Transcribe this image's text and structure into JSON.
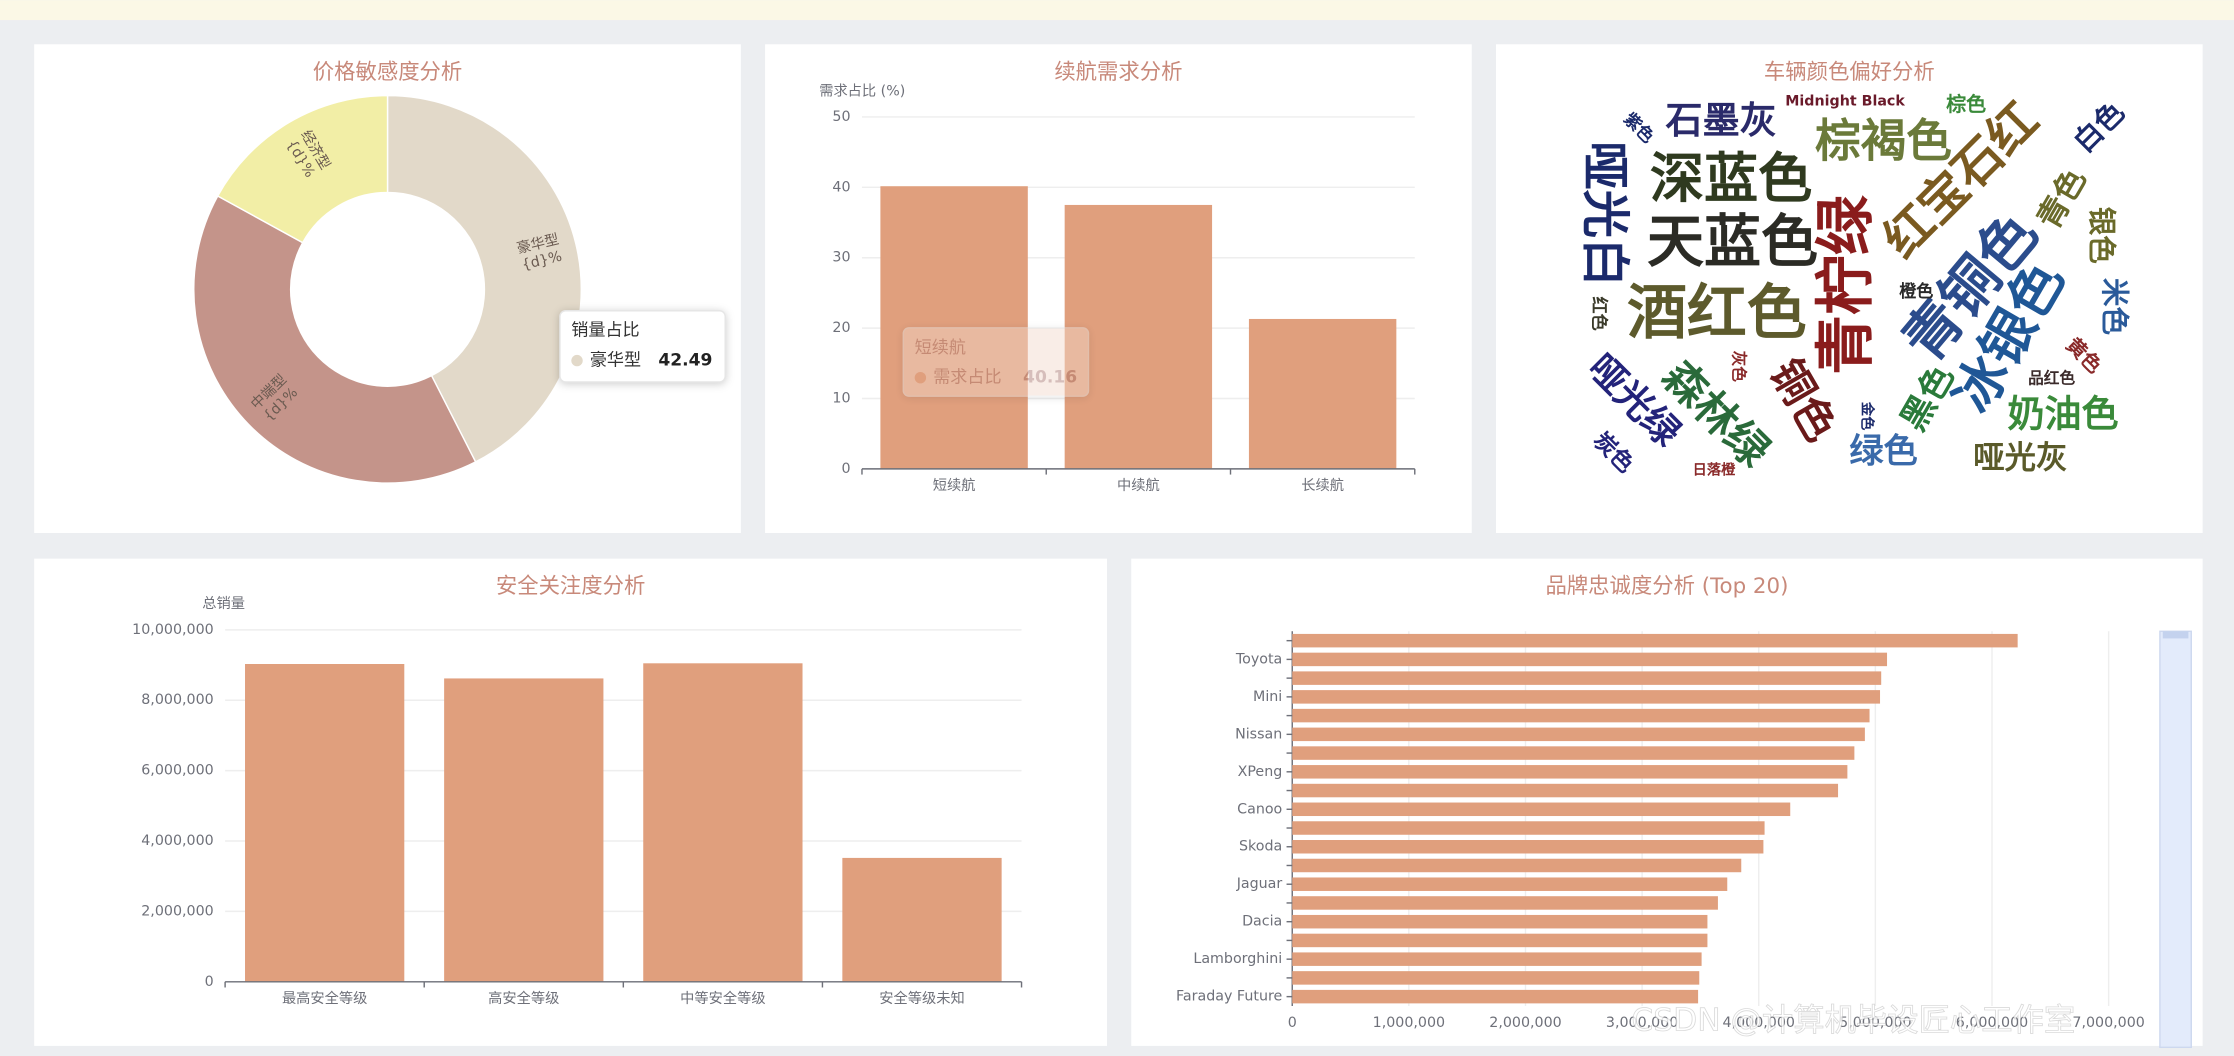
{
  "chart_data": [
    {
      "type": "pie",
      "title": "价格敏感度分析",
      "categories": [
        "豪华型",
        "中端型",
        "经济型"
      ],
      "values": [
        42.49,
        40.51,
        17.0
      ],
      "colors": [
        "#e2d9c9",
        "#c4948a",
        "#f2eea6"
      ],
      "label_template": "{d}%",
      "tooltip": {
        "series_name": "销量占比",
        "category": 0
      }
    },
    {
      "type": "bar",
      "title": "续航需求分析",
      "y_axis_name": "需求占比 (%)",
      "categories": [
        "短续航",
        "中续航",
        "长续航"
      ],
      "values": [
        40.16,
        37.5,
        21.3
      ],
      "color": "#e09f7d",
      "ylim": [
        0,
        50
      ],
      "yticks": [
        0,
        10,
        20,
        30,
        40,
        50
      ],
      "grid": true,
      "tooltip": {
        "series_name": "需求占比",
        "category": 0
      }
    },
    {
      "type": "wordcloud",
      "title": "车辆颜色偏好分析",
      "words": [
        {
          "text": "酒红色",
          "value": 42,
          "color": "#5d5a2c"
        },
        {
          "text": "青柠绿",
          "value": 42,
          "color": "#8a1c1c"
        },
        {
          "text": "天蓝色",
          "value": 40,
          "color": "#2b2b25"
        },
        {
          "text": "深蓝色",
          "value": 38,
          "color": "#2f3a1f"
        },
        {
          "text": "青铜色",
          "value": 40,
          "color": "#2b4c8c"
        },
        {
          "text": "冰银色",
          "value": 38,
          "color": "#1f5796"
        },
        {
          "text": "红宝石红",
          "value": 34,
          "color": "#7a5a20"
        },
        {
          "text": "哑光白",
          "value": 34,
          "color": "#1b2a6b"
        },
        {
          "text": "棕褐色",
          "value": 32,
          "color": "#6b7a3a"
        },
        {
          "text": "石墨灰",
          "value": 26,
          "color": "#2a2a6a"
        },
        {
          "text": "森林绿",
          "value": 30,
          "color": "#2a6a3a"
        },
        {
          "text": "铜色",
          "value": 30,
          "color": "#6a1a1a"
        },
        {
          "text": "哑光绿",
          "value": 26,
          "color": "#23237a"
        },
        {
          "text": "奶油色",
          "value": 26,
          "color": "#3a8a3a"
        },
        {
          "text": "绿色",
          "value": 24,
          "color": "#3a6aaa"
        },
        {
          "text": "哑光灰",
          "value": 22,
          "color": "#5a5a2a"
        },
        {
          "text": "黑色",
          "value": 24,
          "color": "#2a7a3a"
        },
        {
          "text": "青色",
          "value": 22,
          "color": "#6a6a2a"
        },
        {
          "text": "银色",
          "value": 20,
          "color": "#6a6a2a"
        },
        {
          "text": "米色",
          "value": 20,
          "color": "#2a5a9a"
        },
        {
          "text": "白色",
          "value": 20,
          "color": "#1b2a6b"
        },
        {
          "text": "黄色",
          "value": 14,
          "color": "#8a2a2a"
        },
        {
          "text": "品红色",
          "value": 11,
          "color": "#3a2a2a"
        },
        {
          "text": "棕色",
          "value": 14,
          "color": "#3a8a3a"
        },
        {
          "text": "Midnight Black",
          "value": 10,
          "color": "#6a1a2a"
        },
        {
          "text": "紫色",
          "value": 12,
          "color": "#1b2a6b"
        },
        {
          "text": "橙色",
          "value": 12,
          "color": "#2a2a2a"
        },
        {
          "text": "灰色",
          "value": 11,
          "color": "#8a2a2a"
        },
        {
          "text": "红色",
          "value": 12,
          "color": "#3a3a2a"
        },
        {
          "text": "日落橙",
          "value": 10,
          "color": "#8a2a2a"
        },
        {
          "text": "金色",
          "value": 10,
          "color": "#1b2a6b"
        },
        {
          "text": "炭色",
          "value": 16,
          "color": "#23237a"
        }
      ]
    },
    {
      "type": "bar",
      "title": "安全关注度分析",
      "y_axis_name": "总销量",
      "categories": [
        "最高安全等级",
        "高安全等级",
        "中等安全等级",
        "安全等级未知"
      ],
      "values": [
        9030000,
        8620000,
        9050000,
        3520000
      ],
      "color": "#e09f7d",
      "ylim": [
        0,
        10000000
      ],
      "yticks": [
        0,
        {
          "value": 2000000,
          "label": "2,000,000"
        },
        {
          "value": 4000000,
          "label": "4,000,000"
        },
        {
          "value": 6000000,
          "label": "6,000,000"
        },
        {
          "value": 8000000,
          "label": "8,000,000"
        },
        {
          "value": 10000000,
          "label": "10,000,000"
        }
      ],
      "grid": true
    },
    {
      "type": "bar",
      "orientation": "horizontal",
      "title": "品牌忠诚度分析 (Top 20)",
      "categories": [
        "Faraday Future",
        null,
        "Lamborghini",
        null,
        "Dacia",
        null,
        "Jaguar",
        null,
        "Skoda",
        null,
        "Canoo",
        null,
        "XPeng",
        null,
        "Nissan",
        null,
        "Mini",
        null,
        "Toyota",
        null
      ],
      "values": [
        3480000,
        3490000,
        3510000,
        3560000,
        3560000,
        3650000,
        3730000,
        3850000,
        4040000,
        4050000,
        4270000,
        4680000,
        4760000,
        4820000,
        4910000,
        4950000,
        5040000,
        5050000,
        5100000,
        6220000
      ],
      "color": "#e09f7d",
      "xlim": [
        0,
        7000000
      ],
      "xticks": [
        0,
        {
          "value": 1000000,
          "label": "1,000,000"
        },
        {
          "value": 2000000,
          "label": "2,000,000"
        },
        {
          "value": 3000000,
          "label": "3,000,000"
        },
        {
          "value": 4000000,
          "label": "4,000,000"
        },
        {
          "value": 5000000,
          "label": "5,000,000"
        },
        {
          "value": 6000000,
          "label": "6,000,000"
        },
        {
          "value": 7000000,
          "label": "7,000,000"
        }
      ],
      "grid": true
    }
  ],
  "watermark": "CSDN @计算机毕设匠心工作室"
}
